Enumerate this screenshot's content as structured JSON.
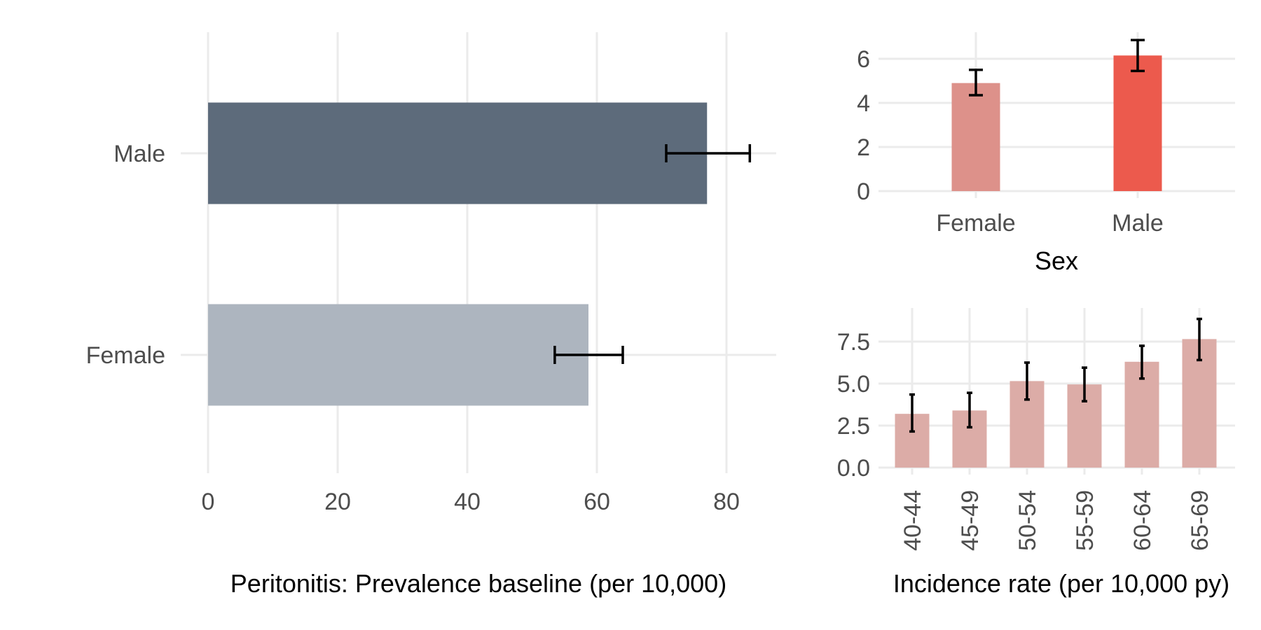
{
  "chart_data": [
    {
      "type": "bar",
      "orientation": "horizontal",
      "categories": [
        "Male",
        "Female"
      ],
      "values": [
        77,
        58.7
      ],
      "error_low": [
        70.7,
        53.5
      ],
      "error_high": [
        83.6,
        64.0
      ],
      "xlabel": "Peritonitis: Prevalence baseline (per 10,000)",
      "ylabel": "",
      "xlim": [
        0,
        87
      ],
      "xticks": [
        "0",
        "20",
        "40",
        "60",
        "80"
      ],
      "grid": true,
      "colors": [
        "#5d6b7b",
        "#adb5bf"
      ]
    },
    {
      "type": "bar",
      "categories": [
        "Female",
        "Male"
      ],
      "values": [
        4.9,
        6.15
      ],
      "error_low": [
        4.35,
        5.45
      ],
      "error_high": [
        5.5,
        6.85
      ],
      "xlabel": "Sex",
      "ylabel": "",
      "ylim": [
        0,
        6.9
      ],
      "yticks": [
        "0",
        "2",
        "4",
        "6"
      ],
      "grid": true,
      "colors": [
        "#dd918a",
        "#ec5a4d"
      ]
    },
    {
      "type": "bar",
      "categories": [
        "40-44",
        "45-49",
        "50-54",
        "55-59",
        "60-64",
        "65-69"
      ],
      "values": [
        3.2,
        3.4,
        5.15,
        4.95,
        6.3,
        7.65
      ],
      "error_low": [
        2.15,
        2.4,
        4.05,
        3.95,
        5.3,
        6.4
      ],
      "error_high": [
        4.35,
        4.45,
        6.25,
        5.95,
        7.25,
        8.85
      ],
      "xlabel": "Incidence rate (per 10,000 py)",
      "ylabel": "",
      "ylim": [
        0,
        9.2
      ],
      "yticks": [
        "0.0",
        "2.5",
        "5.0",
        "7.5"
      ],
      "grid": true,
      "colors": [
        "#dcaca7"
      ]
    }
  ]
}
